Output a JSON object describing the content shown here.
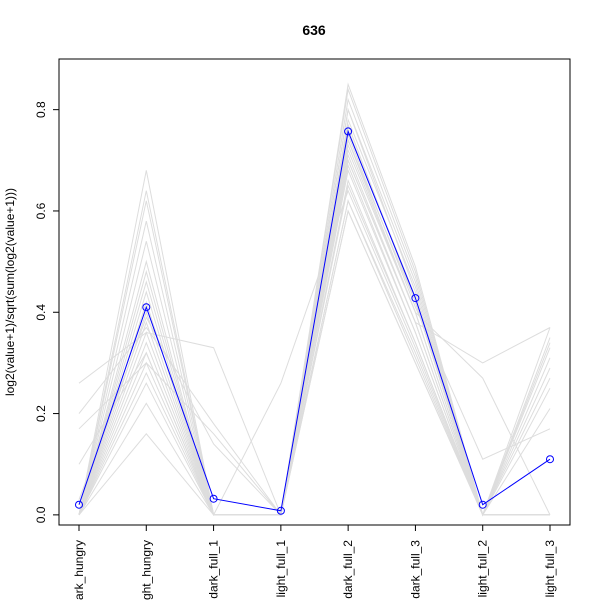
{
  "chart_data": {
    "type": "line",
    "title": "636",
    "xlabel": "",
    "ylabel": "log2(value+1)/sqrt(sum(log2(value+1)))",
    "categories": [
      "dark_hungry",
      "light_hungry",
      "dark_full_1",
      "light_full_1",
      "dark_full_2",
      "dark_full_3",
      "light_full_2",
      "light_full_3"
    ],
    "ylim": [
      -0.02,
      0.9
    ],
    "yticks": [
      0.0,
      0.2,
      0.4,
      0.6,
      0.8
    ],
    "ytick_labels": [
      "0.0",
      "0.2",
      "0.4",
      "0.6",
      "0.8"
    ],
    "grid": false,
    "highlight": {
      "values": [
        0.02,
        0.41,
        0.032,
        0.008,
        0.757,
        0.428,
        0.02,
        0.11
      ],
      "color": "#0000ff"
    },
    "background_series_color": "#dddddd",
    "background_series": [
      [
        0.0,
        0.26,
        0.0,
        0.0,
        0.6,
        0.3,
        0.0,
        0.0
      ],
      [
        0.0,
        0.28,
        0.0,
        0.0,
        0.62,
        0.32,
        0.0,
        0.21
      ],
      [
        0.0,
        0.3,
        0.0,
        0.0,
        0.65,
        0.34,
        0.0,
        0.25
      ],
      [
        0.0,
        0.32,
        0.0,
        0.0,
        0.68,
        0.36,
        0.0,
        0.27
      ],
      [
        0.0,
        0.34,
        0.0,
        0.0,
        0.7,
        0.38,
        0.0,
        0.29
      ],
      [
        0.0,
        0.36,
        0.0,
        0.0,
        0.72,
        0.4,
        0.0,
        0.31
      ],
      [
        0.0,
        0.38,
        0.0,
        0.0,
        0.74,
        0.42,
        0.0,
        0.33
      ],
      [
        0.0,
        0.4,
        0.0,
        0.0,
        0.76,
        0.43,
        0.0,
        0.34
      ],
      [
        0.0,
        0.42,
        0.0,
        0.0,
        0.78,
        0.45,
        0.0,
        0.35
      ],
      [
        0.0,
        0.44,
        0.0,
        0.0,
        0.8,
        0.46,
        0.0,
        0.37
      ],
      [
        0.0,
        0.46,
        0.0,
        0.0,
        0.82,
        0.47,
        0.0,
        0.0
      ],
      [
        0.0,
        0.48,
        0.0,
        0.0,
        0.84,
        0.48,
        0.0,
        0.0
      ],
      [
        0.0,
        0.5,
        0.0,
        0.0,
        0.85,
        0.49,
        0.0,
        0.0
      ],
      [
        0.0,
        0.54,
        0.0,
        0.0,
        0.8,
        0.44,
        0.0,
        0.0
      ],
      [
        0.0,
        0.58,
        0.0,
        0.0,
        0.77,
        0.42,
        0.0,
        0.0
      ],
      [
        0.0,
        0.62,
        0.0,
        0.0,
        0.74,
        0.4,
        0.0,
        0.0
      ],
      [
        0.0,
        0.64,
        0.0,
        0.0,
        0.71,
        0.38,
        0.0,
        0.0
      ],
      [
        0.0,
        0.68,
        0.0,
        0.0,
        0.69,
        0.36,
        0.0,
        0.0
      ],
      [
        0.0,
        0.16,
        0.0,
        0.0,
        0.6,
        0.3,
        0.0,
        0.0
      ],
      [
        0.0,
        0.22,
        0.0,
        0.0,
        0.66,
        0.34,
        0.0,
        0.0
      ],
      [
        0.26,
        0.36,
        0.33,
        0.0,
        0.7,
        0.38,
        0.3,
        0.37
      ],
      [
        0.2,
        0.37,
        0.18,
        0.0,
        0.73,
        0.4,
        0.27,
        0.0
      ],
      [
        0.17,
        0.3,
        0.16,
        0.0,
        0.75,
        0.41,
        0.11,
        0.17
      ],
      [
        0.1,
        0.32,
        0.0,
        0.26,
        0.64,
        0.33,
        0.0,
        0.0
      ],
      [
        0.03,
        0.39,
        0.14,
        0.0,
        0.62,
        0.31,
        0.0,
        0.0
      ]
    ]
  }
}
